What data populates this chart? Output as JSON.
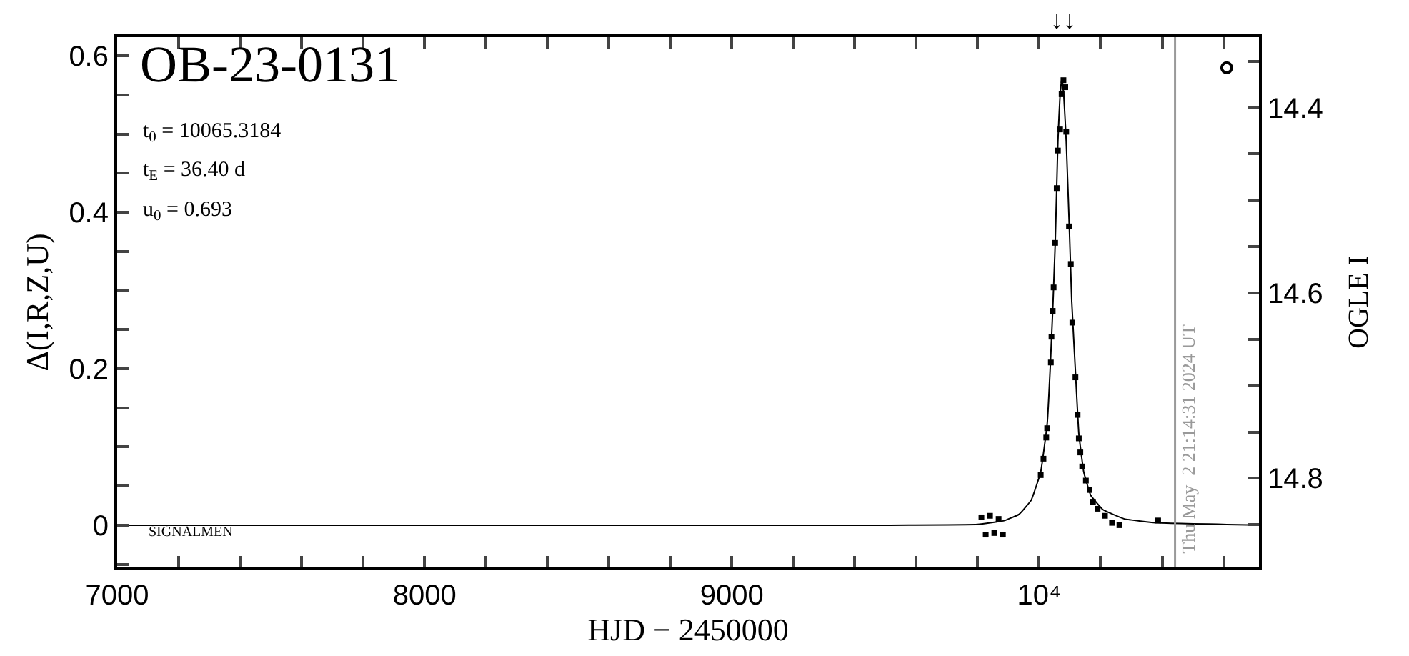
{
  "chart_data": {
    "type": "scatter",
    "title": "OB-23-0131",
    "xlabel": "HJD − 2450000",
    "ylabel": "Δ(I,R,Z,U)",
    "y2label": "OGLE I",
    "annotations": [
      "t$_{0}$ = 10065.3184",
      "t$_{E}$ = 36.40 d",
      "u$_{0}$ = 0.693",
      "SIGNALMEN",
      "Thu May  2 21:14:31 2024 UT",
      "↓↓"
    ],
    "series": [
      {
        "type": "line",
        "color": "#000000",
        "x": [
          7000,
          9500,
          9800,
          9888,
          9935,
          9974,
          10005,
          10026,
          10036,
          10044,
          10052,
          10057,
          10061,
          10068,
          10074,
          10080,
          10088,
          10098,
          10106,
          10119,
          10129,
          10145,
          10168,
          10207,
          10277,
          10386,
          10715
        ],
        "values": [
          0,
          0,
          0.001,
          0.006,
          0.014,
          0.032,
          0.068,
          0.129,
          0.201,
          0.274,
          0.358,
          0.431,
          0.491,
          0.55,
          0.572,
          0.55,
          0.491,
          0.382,
          0.286,
          0.189,
          0.117,
          0.068,
          0.038,
          0.02,
          0.008,
          0.003,
          0
        ]
      },
      {
        "color": "#000000",
        "x": [
          9812,
          9826,
          9840,
          9854,
          9868,
          9882,
          10005,
          10014,
          10023,
          10026,
          10038,
          10040,
          10044,
          10047,
          10052,
          10057,
          10061,
          10068,
          10073,
          10079,
          10085,
          10088,
          10097,
          10103,
          10108,
          10118,
          10125,
          10129,
          10134,
          10140,
          10152,
          10164,
          10175,
          10190,
          10214,
          10237,
          10261,
          10387
        ],
        "values": [
          0.01,
          -0.012,
          0.012,
          -0.01,
          0.008,
          -0.012,
          0.064,
          0.085,
          0.112,
          0.124,
          0.208,
          0.241,
          0.274,
          0.304,
          0.361,
          0.431,
          0.479,
          0.506,
          0.551,
          0.569,
          0.56,
          0.503,
          0.382,
          0.334,
          0.259,
          0.189,
          0.141,
          0.111,
          0.093,
          0.075,
          0.057,
          0.045,
          0.03,
          0.021,
          0.012,
          0.003,
          0.0,
          0.006
        ],
        "marker": "square"
      },
      {
        "marker": "circle",
        "axis": "y2",
        "color": "#000000",
        "x": [
          10610
        ],
        "values": [
          14.357
        ]
      }
    ],
    "xlim": [
      7000,
      10715
    ],
    "ylim": [
      -0.054,
      0.624
    ],
    "y2lim": [
      14.896,
      14.324
    ],
    "xticks": [
      7000,
      {
        "value": 7200,
        "label": null
      },
      {
        "value": 7400,
        "label": null
      },
      {
        "value": 7600,
        "label": null
      },
      {
        "value": 7800,
        "label": null
      },
      8000,
      {
        "value": 8200,
        "label": null
      },
      {
        "value": 8400,
        "label": null
      },
      {
        "value": 8600,
        "label": null
      },
      {
        "value": 8800,
        "label": null
      },
      9000,
      {
        "value": 9200,
        "label": null
      },
      {
        "value": 9400,
        "label": null
      },
      {
        "value": 9600,
        "label": null
      },
      {
        "value": 9800,
        "label": null
      },
      {
        "value": 10000,
        "label": "10⁴"
      },
      {
        "value": 10200,
        "label": null
      },
      {
        "value": 10400,
        "label": null
      },
      {
        "value": 10600,
        "label": null
      }
    ],
    "yticks": [
      {
        "value": -0.05,
        "label": null
      },
      0,
      {
        "value": 0.05,
        "label": null
      },
      {
        "value": 0.1,
        "label": null
      },
      {
        "value": 0.15,
        "label": null
      },
      0.2,
      {
        "value": 0.25,
        "label": null
      },
      {
        "value": 0.3,
        "label": null
      },
      {
        "value": 0.35,
        "label": null
      },
      0.4,
      {
        "value": 0.45,
        "label": null
      },
      {
        "value": 0.5,
        "label": null
      },
      {
        "value": 0.55,
        "label": null
      },
      0.6
    ],
    "y2ticks": [
      {
        "value": 14.35,
        "label": null
      },
      14.4,
      {
        "value": 14.45,
        "label": null
      },
      {
        "value": 14.5,
        "label": null
      },
      {
        "value": 14.55,
        "label": null
      },
      14.6,
      {
        "value": 14.65,
        "label": null
      },
      {
        "value": 14.7,
        "label": null
      },
      {
        "value": 14.75,
        "label": null
      },
      14.8,
      {
        "value": 14.85,
        "label": null
      }
    ],
    "ref_lines": [
      {
        "axis": "x",
        "value": 10442,
        "color": "#999999"
      }
    ],
    "grid": false
  }
}
